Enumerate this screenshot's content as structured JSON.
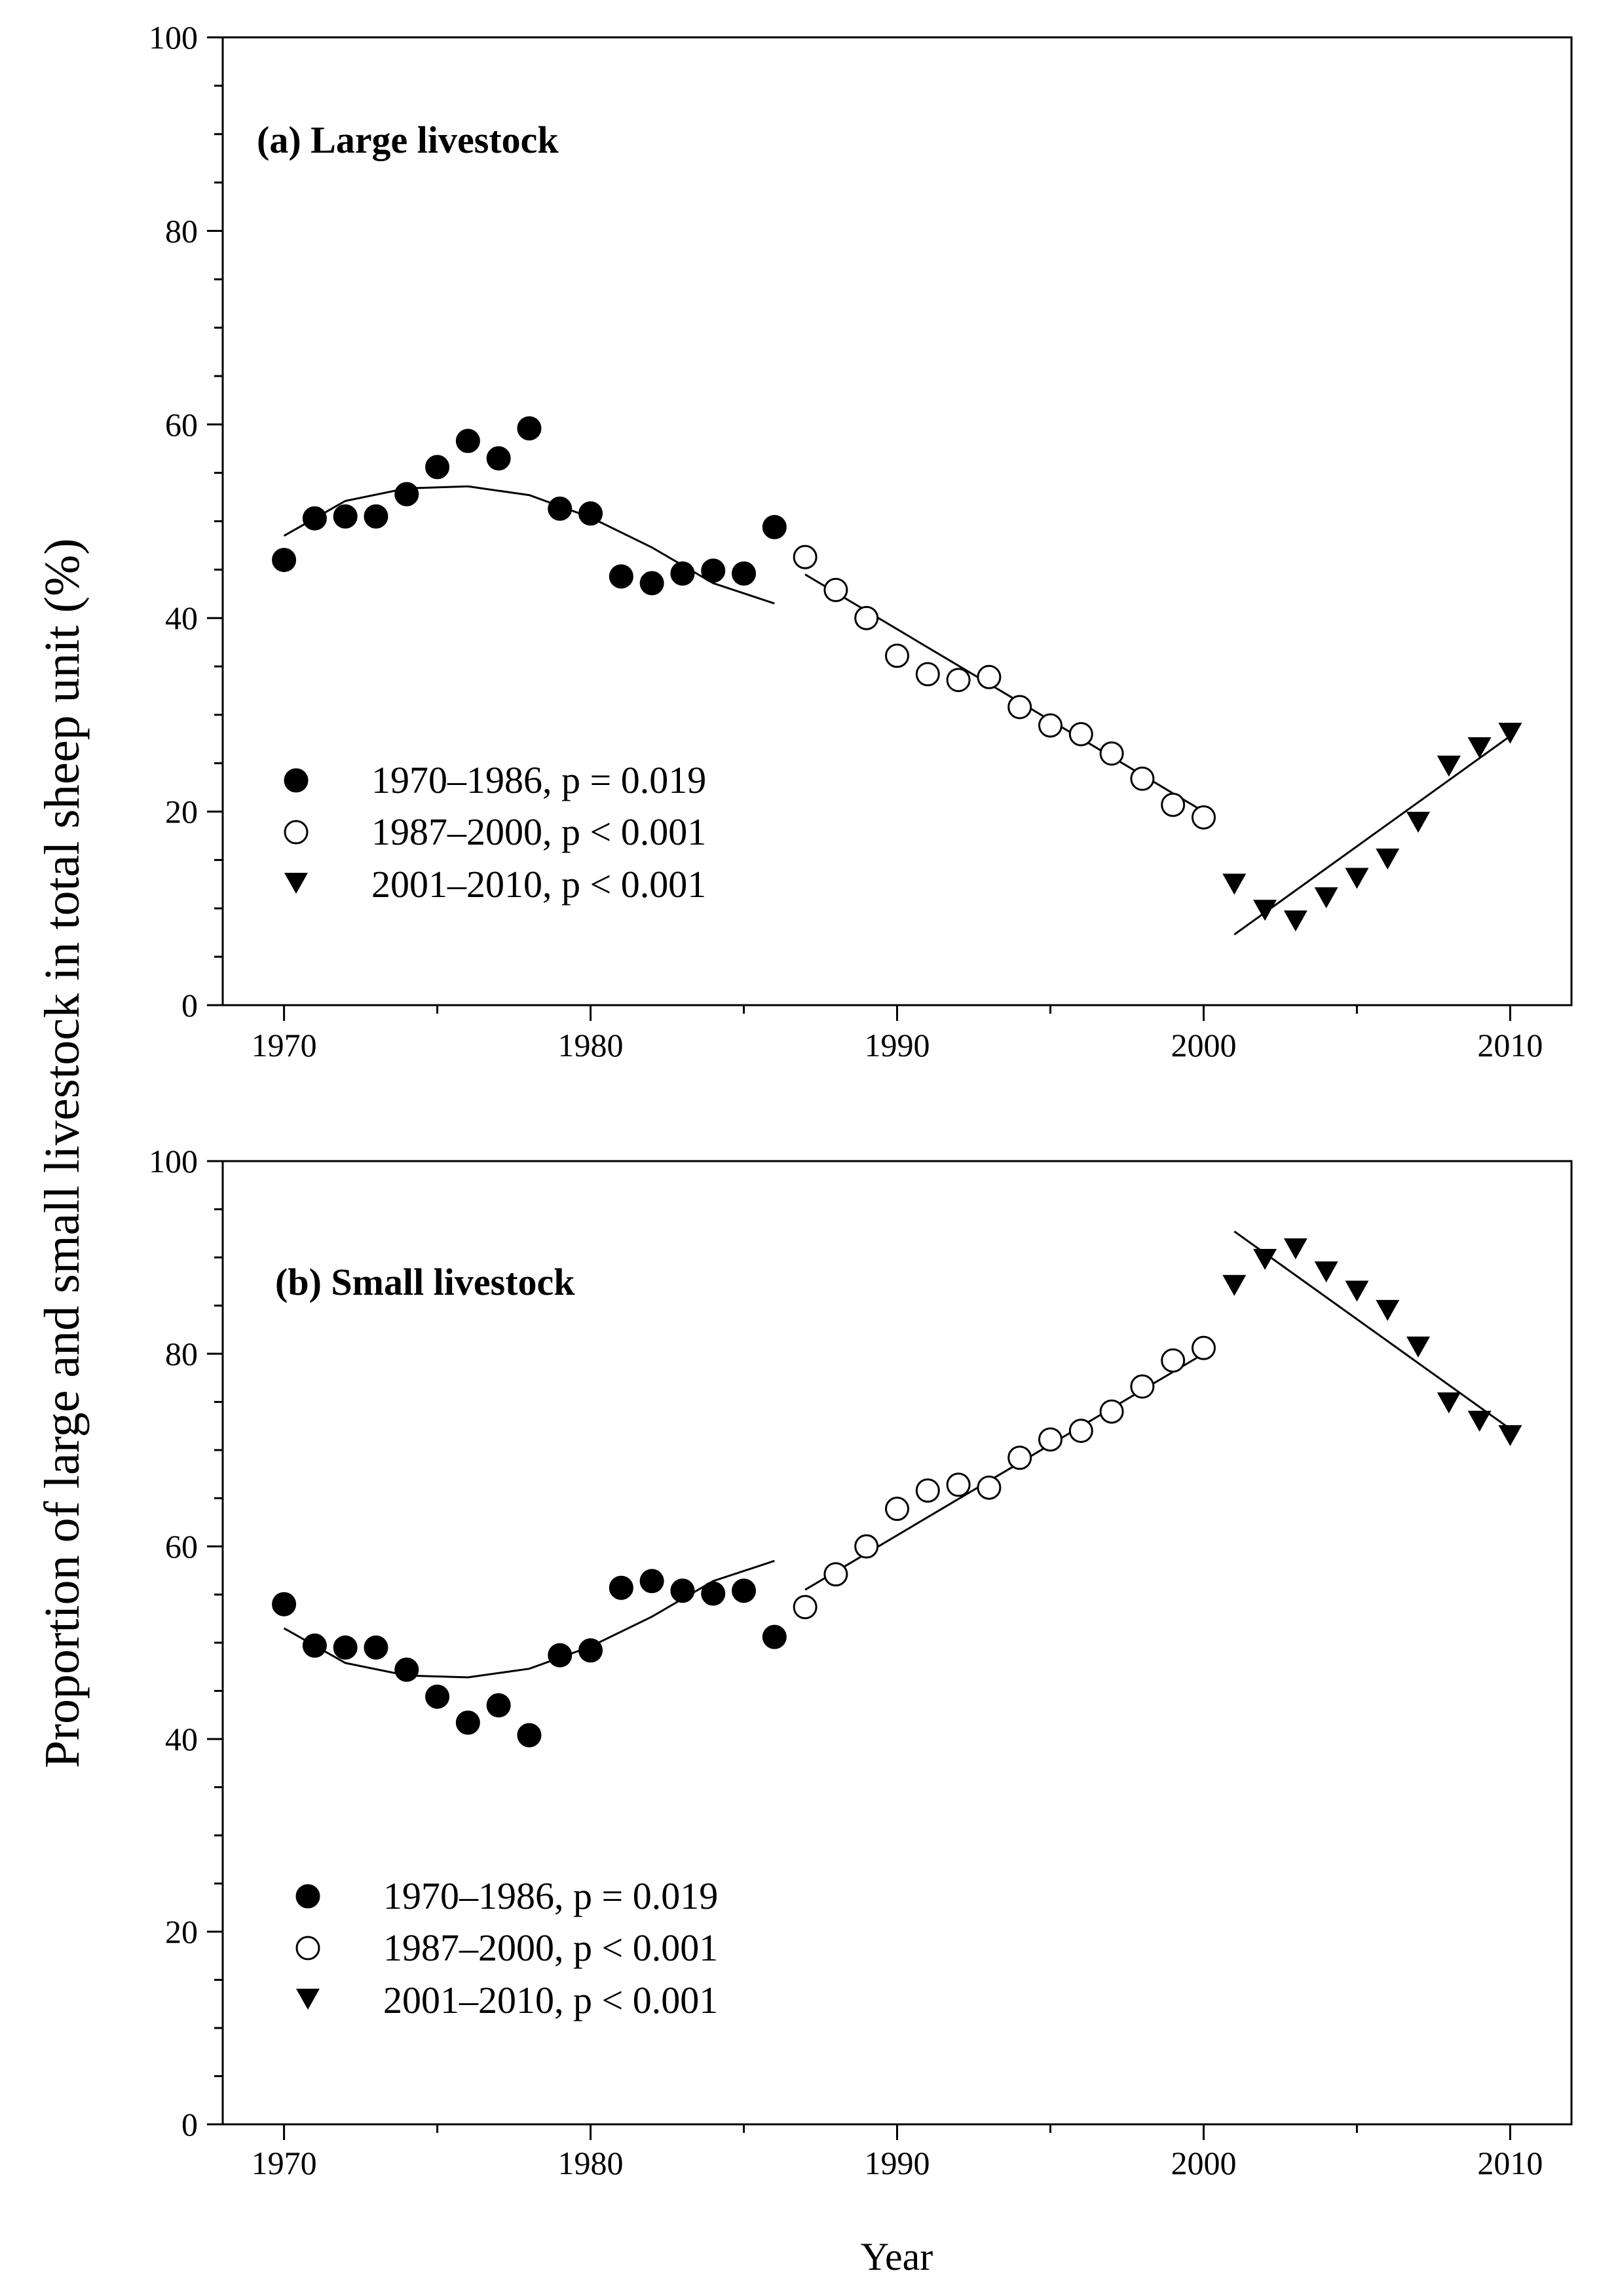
{
  "chart_data": [
    {
      "type": "scatter",
      "title": "(a) Large livestock",
      "xlabel": "",
      "ylabel": "Proportion of large and small livestock in total sheep unit (%)",
      "xlim": [
        1968,
        2012
      ],
      "ylim": [
        0,
        100
      ],
      "xticks": [
        1970,
        1980,
        1990,
        2000,
        2010
      ],
      "yticks": [
        0,
        20,
        40,
        60,
        80,
        100
      ],
      "series": [
        {
          "name": "1970–1986, p = 0.019",
          "marker": "filled-circle",
          "x": [
            1970,
            1971,
            1972,
            1973,
            1974,
            1975,
            1976,
            1977,
            1978,
            1979,
            1980,
            1981,
            1982,
            1983,
            1984,
            1985,
            1986
          ],
          "y": [
            46.0,
            50.3,
            50.5,
            50.5,
            52.8,
            55.6,
            58.3,
            56.5,
            59.6,
            51.3,
            50.8,
            44.3,
            43.6,
            44.6,
            44.9,
            44.6,
            49.4
          ],
          "fit": {
            "type": "quadratic",
            "x": [
              1970,
              1972,
              1974,
              1976,
              1978,
              1980,
              1982,
              1984,
              1986
            ],
            "y": [
              48.5,
              52.1,
              53.4,
              53.6,
              52.7,
              50.4,
              47.3,
              43.6,
              41.5
            ]
          }
        },
        {
          "name": "1987–2000, p < 0.001",
          "marker": "open-circle",
          "x": [
            1987,
            1988,
            1989,
            1990,
            1991,
            1992,
            1993,
            1994,
            1995,
            1996,
            1997,
            1998,
            1999,
            2000
          ],
          "y": [
            46.3,
            42.9,
            40.0,
            36.1,
            34.2,
            33.6,
            33.9,
            30.8,
            28.9,
            28.0,
            26.0,
            23.4,
            20.7,
            19.4
          ],
          "fit": {
            "type": "linear",
            "x": [
              1987,
              2000
            ],
            "y": [
              44.5,
              20.0
            ]
          }
        },
        {
          "name": "2001–2010, p < 0.001",
          "marker": "filled-triangle-down",
          "x": [
            2001,
            2002,
            2003,
            2004,
            2005,
            2006,
            2007,
            2008,
            2009,
            2010
          ],
          "y": [
            12.7,
            10.0,
            8.9,
            11.3,
            13.3,
            15.3,
            19.1,
            24.9,
            26.8,
            28.3
          ],
          "fit": {
            "type": "linear",
            "x": [
              2001,
              2010
            ],
            "y": [
              7.3,
              27.8
            ]
          }
        }
      ]
    },
    {
      "type": "scatter",
      "title": "(b) Small livestock",
      "xlabel": "Year",
      "ylabel": "Proportion of large and small livestock in total sheep unit (%)",
      "xlim": [
        1968,
        2012
      ],
      "ylim": [
        0,
        100
      ],
      "xticks": [
        1970,
        1980,
        1990,
        2000,
        2010
      ],
      "yticks": [
        0,
        20,
        40,
        60,
        80,
        100
      ],
      "series": [
        {
          "name": "1970–1986, p = 0.019",
          "marker": "filled-circle",
          "x": [
            1970,
            1971,
            1972,
            1973,
            1974,
            1975,
            1976,
            1977,
            1978,
            1979,
            1980,
            1981,
            1982,
            1983,
            1984,
            1985,
            1986
          ],
          "y": [
            54.0,
            49.7,
            49.5,
            49.5,
            47.2,
            44.4,
            41.7,
            43.5,
            40.4,
            48.7,
            49.2,
            55.7,
            56.4,
            55.4,
            55.1,
            55.4,
            50.6
          ],
          "fit": {
            "type": "quadratic",
            "x": [
              1970,
              1972,
              1974,
              1976,
              1978,
              1980,
              1982,
              1984,
              1986
            ],
            "y": [
              51.5,
              47.9,
              46.6,
              46.4,
              47.3,
              49.6,
              52.7,
              56.4,
              58.5
            ]
          }
        },
        {
          "name": "1987–2000, p < 0.001",
          "marker": "open-circle",
          "x": [
            1987,
            1988,
            1989,
            1990,
            1991,
            1992,
            1993,
            1994,
            1995,
            1996,
            1997,
            1998,
            1999,
            2000
          ],
          "y": [
            53.7,
            57.1,
            60.0,
            63.9,
            65.8,
            66.4,
            66.1,
            69.2,
            71.1,
            72.0,
            74.0,
            76.6,
            79.3,
            80.6
          ],
          "fit": {
            "type": "linear",
            "x": [
              1987,
              2000
            ],
            "y": [
              55.5,
              80.0
            ]
          }
        },
        {
          "name": "2001–2010, p < 0.001",
          "marker": "filled-triangle-down",
          "x": [
            2001,
            2002,
            2003,
            2004,
            2005,
            2006,
            2007,
            2008,
            2009,
            2010
          ],
          "y": [
            87.3,
            90.0,
            91.1,
            88.7,
            86.7,
            84.7,
            80.9,
            75.1,
            73.2,
            71.7
          ],
          "fit": {
            "type": "linear",
            "x": [
              2001,
              2010
            ],
            "y": [
              92.7,
              72.2
            ]
          }
        }
      ]
    }
  ]
}
